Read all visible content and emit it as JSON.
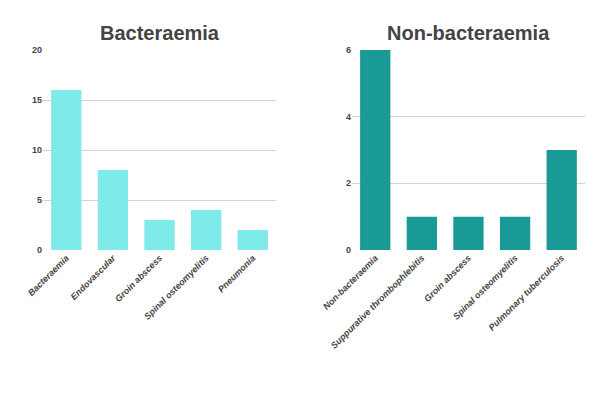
{
  "chart_data": [
    {
      "type": "bar",
      "title": "Bacteraemia",
      "categories": [
        "Bacteraemia",
        "Endovascular",
        "Groin abscess",
        "Spinal osteomyelitis",
        "Pneumonia"
      ],
      "values": [
        16,
        8,
        3,
        4,
        2
      ],
      "color": "#7EEAEA",
      "ylim": [
        0,
        20
      ],
      "yticks": [
        0,
        5,
        10,
        15,
        20
      ],
      "grid": true
    },
    {
      "type": "bar",
      "title": "Non-bacteraemia",
      "categories": [
        "Non-bacteraemia",
        "Suppurative thrombophlebitis",
        "Groin abscess",
        "Spinal osteomyelitis",
        "Pulmonary tuberculosis"
      ],
      "values": [
        6,
        1,
        1,
        1,
        3
      ],
      "color": "#1A9A96",
      "ylim": [
        0,
        6
      ],
      "yticks": [
        0,
        2,
        4,
        6
      ],
      "grid": true
    }
  ]
}
